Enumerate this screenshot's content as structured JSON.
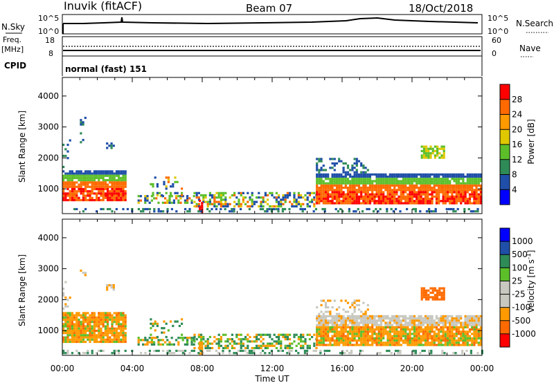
{
  "header": {
    "station": "Inuvik  (fitACF)",
    "beam": "Beam 07",
    "date": "18/Oct/2018"
  },
  "sky_panel": {
    "label": "N.Sky",
    "left_ticks": [
      "10^5",
      "10^0"
    ],
    "right_ticks": [
      "10^5",
      "10^0"
    ],
    "right_label": "N.Search"
  },
  "freq_panel": {
    "label_line1": "Freq.",
    "label_line2": "[MHz]",
    "left_ticks": [
      "18",
      "8"
    ],
    "right_ticks": [
      "60",
      "0"
    ],
    "right_label": "Nave"
  },
  "cpid_panel": {
    "label": "CPID",
    "value": "normal (fast) 151"
  },
  "colors": {
    "power": [
      "#0000ff",
      "#1f4fa8",
      "#2e8b57",
      "#5cbf2a",
      "#e0c800",
      "#ff9a00",
      "#ff6a00",
      "#ff0000"
    ],
    "velocity": [
      "#ff0000",
      "#ff6a00",
      "#ff9a00",
      "#c8c8c0",
      "#c8c8c0",
      "#5cbf2a",
      "#2e8b57",
      "#1f4fa8",
      "#0000ff"
    ]
  },
  "chart_data": [
    {
      "type": "heatmap",
      "title": "Power",
      "xlabel": "",
      "ylabel": "Slant Range [km]",
      "ylim": [
        200,
        4600
      ],
      "y_ticks": [
        "1000",
        "2000",
        "3000",
        "4000"
      ],
      "colorbar_label": "Power [dB]",
      "colorbar_ticks": [
        "4",
        "8",
        "12",
        "16",
        "20",
        "24",
        "28"
      ],
      "colorbar_range": [
        0,
        32
      ],
      "x_ticks": [
        "00:00",
        "04:00",
        "08:00",
        "12:00",
        "16:00",
        "20:00",
        "00:00"
      ]
    },
    {
      "type": "heatmap",
      "title": "Velocity",
      "xlabel": "Time UT",
      "ylabel": "Slant Range [km]",
      "ylim": [
        200,
        4600
      ],
      "y_ticks": [
        "1000",
        "2000",
        "3000",
        "4000"
      ],
      "colorbar_label": "Velocity [m s",
      "colorbar_label_sup": "-1",
      "colorbar_label_end": "]",
      "colorbar_ticks": [
        "1000",
        "500",
        "100",
        "25",
        "-25",
        "-100",
        "-500",
        "-1000"
      ],
      "x_ticks": [
        "00:00",
        "04:00",
        "08:00",
        "12:00",
        "16:00",
        "20:00",
        "00:00"
      ]
    }
  ]
}
